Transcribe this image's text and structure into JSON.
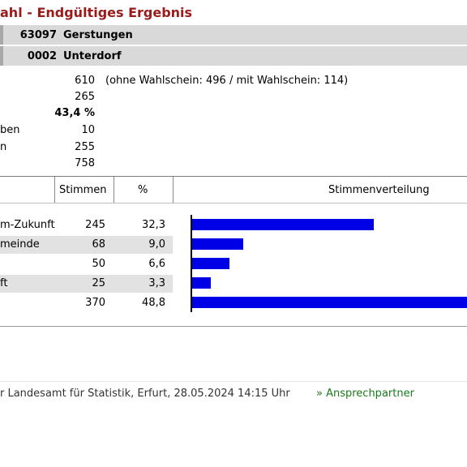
{
  "page": {
    "title": "ahl - Endgültiges Ergebnis"
  },
  "location": {
    "municipality_code": "63097",
    "municipality_name": "Gerstungen",
    "district_code": "0002",
    "district_name": "Unterdorf"
  },
  "stats": [
    {
      "label": "",
      "value": "610",
      "note": "(ohne Wahlschein: 496 / mit Wahlschein: 114)"
    },
    {
      "label": "",
      "value": "265",
      "note": ""
    },
    {
      "label": "",
      "value": "43,4 %",
      "note": "",
      "bold": true
    },
    {
      "label": "ben",
      "value": "10",
      "note": ""
    },
    {
      "label": "n",
      "value": "255",
      "note": ""
    },
    {
      "label": "",
      "value": "758",
      "note": ""
    }
  ],
  "table": {
    "headers": {
      "party": "",
      "stimmen": "Stimmen",
      "pct": "%",
      "distribution": "Stimmenverteilung"
    },
    "rows": [
      {
        "party": "m-Zukunft",
        "stimmen": "245",
        "pct": "32,3",
        "pct_value": 32.3
      },
      {
        "party": "meinde",
        "stimmen": "68",
        "pct": "9,0",
        "pct_value": 9.0
      },
      {
        "party": "",
        "stimmen": "50",
        "pct": "6,6",
        "pct_value": 6.6
      },
      {
        "party": "ft",
        "stimmen": "25",
        "pct": "3,3",
        "pct_value": 3.3
      },
      {
        "party": "",
        "stimmen": "370",
        "pct": "48,8",
        "pct_value": 48.8
      }
    ]
  },
  "colors": {
    "bar": "#0000e6",
    "title": "#9b1b1b",
    "link": "#1a7a1a"
  },
  "footer": {
    "source": "r Landesamt für Statistik, Erfurt, 28.05.2024 14:15 Uhr",
    "link": "» Ansprechpartner"
  }
}
